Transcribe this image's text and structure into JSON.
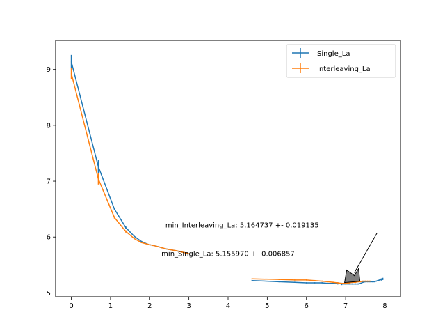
{
  "chart_data": {
    "type": "line",
    "xlim": [
      -0.4,
      8.4
    ],
    "ylim": [
      4.93,
      9.52
    ],
    "xticks": [
      0,
      1,
      2,
      3,
      4,
      5,
      6,
      7,
      8
    ],
    "yticks": [
      5,
      6,
      7,
      8,
      9
    ],
    "grid": false,
    "legend_position": "top-right",
    "series": [
      {
        "name": "Single_La",
        "color": "#1f77b4",
        "segments": [
          {
            "x": [
              0,
              0.69,
              1.1,
              1.39,
              1.61,
              1.79,
              1.95,
              2.08,
              2.2,
              2.3,
              2.4,
              2.48,
              2.56,
              2.64,
              2.71,
              2.77,
              2.83,
              2.89,
              2.94,
              3.0
            ],
            "y": [
              9.14,
              7.26,
              6.5,
              6.17,
              6.01,
              5.92,
              5.87,
              5.85,
              5.83,
              5.81,
              5.79,
              5.78,
              5.77,
              5.76,
              5.75,
              5.74,
              5.73,
              5.72,
              5.71,
              5.7
            ],
            "err": [
              0.12,
              0.12,
              0.02,
              0.02,
              0.01,
              0.01,
              0.01,
              0.01,
              0.01,
              0.01,
              0.01,
              0.01,
              0.01,
              0.01,
              0.01,
              0.01,
              0.01,
              0.01,
              0.01,
              0.01
            ]
          },
          {
            "x": [
              4.61,
              5.3,
              5.7,
              6.0,
              6.21,
              6.4,
              6.55,
              6.68,
              6.8,
              6.9,
              7.0,
              7.09,
              7.17,
              7.25,
              7.32,
              7.38,
              7.44,
              7.5,
              7.56,
              7.62,
              7.68,
              7.73,
              7.78,
              7.82,
              7.87,
              7.91,
              7.95
            ],
            "y": [
              5.22,
              5.2,
              5.19,
              5.18,
              5.18,
              5.18,
              5.17,
              5.17,
              5.17,
              5.16,
              5.16,
              5.16,
              5.16,
              5.16,
              5.16,
              5.17,
              5.19,
              5.2,
              5.2,
              5.2,
              5.2,
              5.2,
              5.21,
              5.22,
              5.23,
              5.24,
              5.25
            ],
            "err": [
              0.01,
              0.01,
              0.01,
              0.01,
              0.01,
              0.01,
              0.01,
              0.01,
              0.02,
              0.02,
              0.01,
              0.01,
              0.01,
              0.01,
              0.01,
              0.01,
              0.01,
              0.01,
              0.01,
              0.01,
              0.01,
              0.01,
              0.01,
              0.01,
              0.01,
              0.02,
              0.02
            ]
          }
        ]
      },
      {
        "name": "Interleaving_La",
        "color": "#ff7f0e",
        "segments": [
          {
            "x": [
              0,
              0.69,
              1.1,
              1.39,
              1.61,
              1.79,
              1.95,
              2.08,
              2.2,
              2.3,
              2.4,
              2.48,
              2.56,
              2.64,
              2.71,
              2.77,
              2.83,
              2.89,
              2.94,
              3.0
            ],
            "y": [
              8.93,
              7.04,
              6.35,
              6.1,
              5.97,
              5.9,
              5.87,
              5.85,
              5.83,
              5.81,
              5.79,
              5.78,
              5.77,
              5.76,
              5.75,
              5.74,
              5.73,
              5.72,
              5.71,
              5.7
            ],
            "err": [
              0.1,
              0.1,
              0.02,
              0.02,
              0.01,
              0.01,
              0.01,
              0.01,
              0.01,
              0.01,
              0.01,
              0.01,
              0.01,
              0.01,
              0.01,
              0.01,
              0.01,
              0.01,
              0.01,
              0.01
            ]
          },
          {
            "x": [
              4.61,
              5.3,
              5.7,
              6.0,
              6.21,
              6.4,
              6.55,
              6.68,
              6.8,
              6.9,
              7.0,
              7.09,
              7.17,
              7.25,
              7.32,
              7.38,
              7.44,
              7.5,
              7.56,
              7.62
            ],
            "y": [
              5.25,
              5.24,
              5.23,
              5.23,
              5.22,
              5.21,
              5.2,
              5.19,
              5.18,
              5.17,
              5.17,
              5.18,
              5.19,
              5.19,
              5.2,
              5.2,
              5.21,
              5.21,
              5.21,
              5.21
            ],
            "err": [
              0.01,
              0.01,
              0.01,
              0.01,
              0.01,
              0.01,
              0.01,
              0.01,
              0.01,
              0.01,
              0.01,
              0.01,
              0.01,
              0.01,
              0.01,
              0.01,
              0.01,
              0.01,
              0.01,
              0.01
            ]
          }
        ]
      }
    ],
    "annotations": [
      {
        "text": "min_Interleaving_La: 5.164737 +- 0.019135",
        "text_x": 2.4,
        "text_y": 6.17,
        "point_x": 7.08,
        "point_y": 5.16,
        "arrow_tail_x": 7.8,
        "arrow_tail_y": 6.07
      },
      {
        "text": "min_Single_La: 5.155970 +- 0.006857",
        "text_x": 2.3,
        "text_y": 5.66,
        "point_x": 7.0,
        "point_y": 5.16,
        "arrow_tail_x": null,
        "arrow_tail_y": null
      }
    ]
  }
}
